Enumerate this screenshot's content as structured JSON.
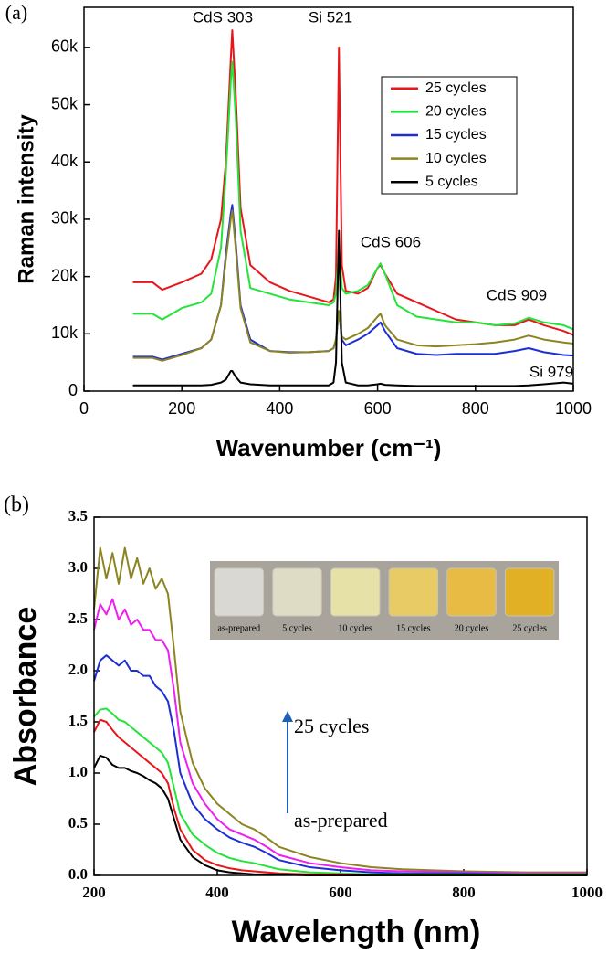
{
  "chart_data": [
    {
      "type": "line",
      "panel_label": "(a)",
      "x_label": "Wavenumber (cm⁻¹)",
      "y_label": "Raman intensity",
      "xlim": [
        0,
        1000
      ],
      "xticks": [
        0,
        200,
        400,
        600,
        800,
        1000
      ],
      "ylim": [
        0,
        67000
      ],
      "yticks": [
        0,
        {
          "value": 10000,
          "label": "10k"
        },
        {
          "value": 20000,
          "label": "20k"
        },
        {
          "value": 30000,
          "label": "30k"
        },
        {
          "value": 40000,
          "label": "40k"
        },
        {
          "value": 50000,
          "label": "50k"
        },
        {
          "value": 60000,
          "label": "60k"
        }
      ],
      "legend": "upper right",
      "annotations": [
        {
          "text": "CdS 303",
          "color": "#000"
        },
        {
          "text": "Si 521",
          "color": "#000"
        },
        {
          "text": "CdS 606",
          "color": "#000"
        },
        {
          "text": "CdS 909",
          "color": "#000"
        },
        {
          "text": "Si 979",
          "color": "#000"
        }
      ],
      "x": [
        100,
        140,
        160,
        200,
        240,
        260,
        280,
        290,
        300,
        303,
        310,
        320,
        340,
        380,
        420,
        460,
        500,
        510,
        515,
        521,
        527,
        535,
        560,
        580,
        600,
        606,
        615,
        640,
        680,
        720,
        760,
        800,
        840,
        880,
        909,
        940,
        980,
        1000
      ],
      "series": [
        {
          "name": "25 cycles",
          "color": "#e8161b",
          "values": [
            19000,
            19000,
            17700,
            19000,
            20500,
            23000,
            30000,
            40000,
            58000,
            63000,
            52000,
            32000,
            22000,
            19000,
            17500,
            16500,
            15500,
            16000,
            20000,
            60000,
            22000,
            17500,
            17000,
            18000,
            21500,
            22000,
            20500,
            17000,
            15500,
            14000,
            12500,
            12000,
            11500,
            11500,
            12500,
            11500,
            10500,
            9800
          ]
        },
        {
          "name": "20 cycles",
          "color": "#22e43a",
          "values": [
            13500,
            13500,
            12500,
            14500,
            15500,
            17000,
            25000,
            38000,
            54000,
            57500,
            48000,
            28000,
            18000,
            17000,
            16000,
            15500,
            15000,
            15500,
            17000,
            25000,
            18000,
            17000,
            17500,
            18500,
            21500,
            22300,
            20500,
            15000,
            13000,
            12500,
            12000,
            12000,
            11500,
            11800,
            12800,
            12000,
            11500,
            10800
          ]
        },
        {
          "name": "15 cycles",
          "color": "#1c2ed6",
          "values": [
            6000,
            6000,
            5500,
            6500,
            7500,
            9000,
            15000,
            24000,
            31000,
            32500,
            26000,
            15000,
            9000,
            7000,
            6800,
            6800,
            7000,
            7500,
            9000,
            14000,
            9000,
            8000,
            9000,
            10000,
            11500,
            12000,
            10500,
            7500,
            6500,
            6300,
            6500,
            6500,
            6500,
            7000,
            7500,
            6800,
            6300,
            6200
          ]
        },
        {
          "name": "10 cycles",
          "color": "#8b8420",
          "values": [
            5800,
            5800,
            5300,
            6300,
            7500,
            9000,
            15000,
            23000,
            30000,
            31500,
            25000,
            14500,
            8500,
            7000,
            6700,
            6800,
            7000,
            7500,
            9000,
            14000,
            9500,
            9000,
            10000,
            11000,
            13000,
            13500,
            11500,
            9000,
            8000,
            7800,
            8000,
            8200,
            8500,
            9000,
            9700,
            9000,
            8500,
            8300
          ]
        },
        {
          "name": "5 cycles",
          "color": "#000000",
          "values": [
            1000,
            1000,
            1000,
            1000,
            1000,
            1100,
            1500,
            2000,
            3500,
            3500,
            2500,
            1500,
            1200,
            1000,
            1000,
            1000,
            1000,
            1500,
            5000,
            28000,
            5000,
            1500,
            1000,
            1000,
            1200,
            1300,
            1100,
            1000,
            900,
            900,
            900,
            900,
            900,
            900,
            1000,
            1200,
            1500,
            1300
          ]
        }
      ]
    },
    {
      "type": "line",
      "panel_label": "(b)",
      "x_label": "Wavelength (nm)",
      "y_label": "Absorbance",
      "xlim": [
        200,
        1000
      ],
      "xticks": [
        200,
        400,
        600,
        800,
        1000
      ],
      "ylim": [
        0,
        3.5
      ],
      "yticks": [
        {
          "value": 0,
          "label": "0.0"
        },
        0.5,
        {
          "value": 1,
          "label": "1.0"
        },
        1.5,
        {
          "value": 2,
          "label": "2.0"
        },
        2.5,
        {
          "value": 3,
          "label": "3.0"
        },
        3.5
      ],
      "annotations": [
        {
          "text": "25 cycles",
          "color": "#9b7a1e"
        },
        {
          "text": "as-prepared",
          "color": "#000"
        }
      ],
      "inset": {
        "labels": [
          "as-prepared",
          "5 cycles",
          "10 cycles",
          "15 cycles",
          "20 cycles",
          "25 cycles"
        ],
        "colors": [
          "#d9d8d2",
          "#dedcc4",
          "#e6e1a6",
          "#e9cb66",
          "#e8bb44",
          "#e2b024"
        ]
      },
      "x": [
        200,
        210,
        220,
        230,
        240,
        250,
        260,
        270,
        280,
        290,
        300,
        310,
        320,
        330,
        340,
        360,
        380,
        400,
        420,
        440,
        460,
        480,
        500,
        550,
        600,
        650,
        700,
        800,
        900,
        1000
      ],
      "series": [
        {
          "color": "#8b8420",
          "values": [
            2.6,
            3.2,
            2.9,
            3.15,
            2.85,
            3.2,
            2.9,
            3.1,
            2.85,
            3.0,
            2.8,
            2.9,
            2.75,
            2.2,
            1.6,
            1.1,
            0.85,
            0.7,
            0.6,
            0.5,
            0.45,
            0.37,
            0.28,
            0.18,
            0.12,
            0.08,
            0.06,
            0.04,
            0.03,
            0.03
          ]
        },
        {
          "color": "#f01ef0",
          "values": [
            2.4,
            2.65,
            2.55,
            2.7,
            2.5,
            2.6,
            2.45,
            2.5,
            2.4,
            2.4,
            2.3,
            2.3,
            2.2,
            1.8,
            1.3,
            0.9,
            0.7,
            0.55,
            0.45,
            0.4,
            0.35,
            0.28,
            0.2,
            0.12,
            0.08,
            0.05,
            0.04,
            0.03,
            0.02,
            0.02
          ]
        },
        {
          "color": "#1c2ed6",
          "values": [
            1.9,
            2.1,
            2.15,
            2.1,
            2.05,
            2.1,
            2.0,
            2.0,
            1.95,
            1.95,
            1.85,
            1.8,
            1.7,
            1.4,
            1.0,
            0.7,
            0.55,
            0.45,
            0.37,
            0.32,
            0.28,
            0.22,
            0.15,
            0.08,
            0.05,
            0.03,
            0.02,
            0.02,
            0.01,
            0.01
          ]
        },
        {
          "color": "#22e43a",
          "values": [
            1.55,
            1.62,
            1.63,
            1.58,
            1.52,
            1.5,
            1.45,
            1.4,
            1.35,
            1.3,
            1.25,
            1.2,
            1.1,
            0.85,
            0.6,
            0.4,
            0.3,
            0.22,
            0.17,
            0.14,
            0.12,
            0.09,
            0.06,
            0.03,
            0.02,
            0.01,
            0.01,
            0.01,
            0.01,
            0.01
          ]
        },
        {
          "color": "#e8161b",
          "values": [
            1.4,
            1.52,
            1.5,
            1.42,
            1.35,
            1.3,
            1.25,
            1.2,
            1.15,
            1.1,
            1.05,
            1.0,
            0.9,
            0.65,
            0.45,
            0.25,
            0.15,
            0.1,
            0.07,
            0.05,
            0.04,
            0.03,
            0.02,
            0.01,
            0.01,
            0,
            0,
            0,
            0,
            0
          ]
        },
        {
          "color": "#000000",
          "values": [
            1.05,
            1.17,
            1.15,
            1.08,
            1.05,
            1.05,
            1.02,
            1.0,
            0.97,
            0.93,
            0.9,
            0.85,
            0.75,
            0.55,
            0.35,
            0.18,
            0.1,
            0.05,
            0.03,
            0.02,
            0.01,
            0.01,
            0.01,
            0,
            0,
            0,
            0,
            0,
            0,
            0
          ]
        }
      ]
    }
  ]
}
